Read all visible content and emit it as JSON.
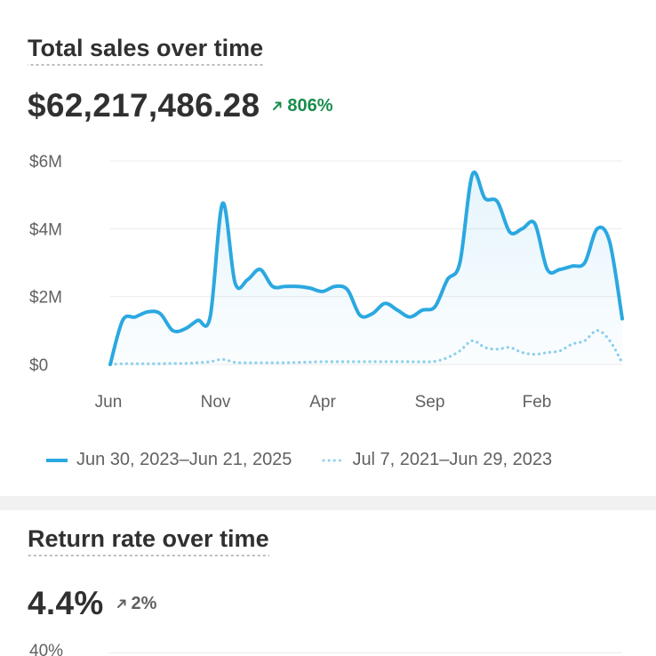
{
  "sales_card": {
    "title": "Total sales over time",
    "value": "$62,217,486.28",
    "delta": "806%",
    "delta_color": "#1a8c4e",
    "legend": [
      {
        "label": "Jun 30, 2023–Jun 21, 2025",
        "style": "solid",
        "color": "#2ba8e0"
      },
      {
        "label": "Jul 7, 2021–Jun 29, 2023",
        "style": "dotted",
        "color": "#8fd0ec"
      }
    ]
  },
  "returns_card": {
    "title": "Return rate over time",
    "value": "4.4%",
    "delta": "2%",
    "y_tick_top": "40%"
  },
  "chart_data": {
    "type": "line",
    "y_ticks": [
      "$0",
      "$2M",
      "$4M",
      "$6M"
    ],
    "x_ticks": [
      "Jun",
      "Nov",
      "Apr",
      "Sep",
      "Feb"
    ],
    "ylim": [
      0,
      6000000
    ],
    "grid": true,
    "legend_position": "bottom",
    "series": [
      {
        "name": "Jun 30, 2023–Jun 21, 2025",
        "color": "#2ba8e0",
        "style": "solid",
        "fill": true,
        "values": [
          0,
          1300000,
          1400000,
          1550000,
          1500000,
          1000000,
          1050000,
          1300000,
          1400000,
          4750000,
          2400000,
          2500000,
          2800000,
          2300000,
          2300000,
          2300000,
          2250000,
          2150000,
          2300000,
          2200000,
          1450000,
          1500000,
          1800000,
          1600000,
          1400000,
          1600000,
          1700000,
          2500000,
          3000000,
          5600000,
          4900000,
          4800000,
          3900000,
          4000000,
          4150000,
          2800000,
          2800000,
          2900000,
          3000000,
          4000000,
          3600000,
          1350000
        ]
      },
      {
        "name": "Jul 7, 2021–Jun 29, 2023",
        "color": "#8fd0ec",
        "style": "dotted",
        "fill": false,
        "values": [
          0,
          20000,
          20000,
          20000,
          20000,
          30000,
          30000,
          50000,
          80000,
          150000,
          60000,
          50000,
          50000,
          50000,
          50000,
          60000,
          70000,
          80000,
          80000,
          80000,
          80000,
          80000,
          80000,
          80000,
          80000,
          80000,
          90000,
          200000,
          400000,
          700000,
          500000,
          450000,
          500000,
          350000,
          300000,
          350000,
          400000,
          600000,
          700000,
          1000000,
          700000,
          50000
        ]
      }
    ]
  }
}
